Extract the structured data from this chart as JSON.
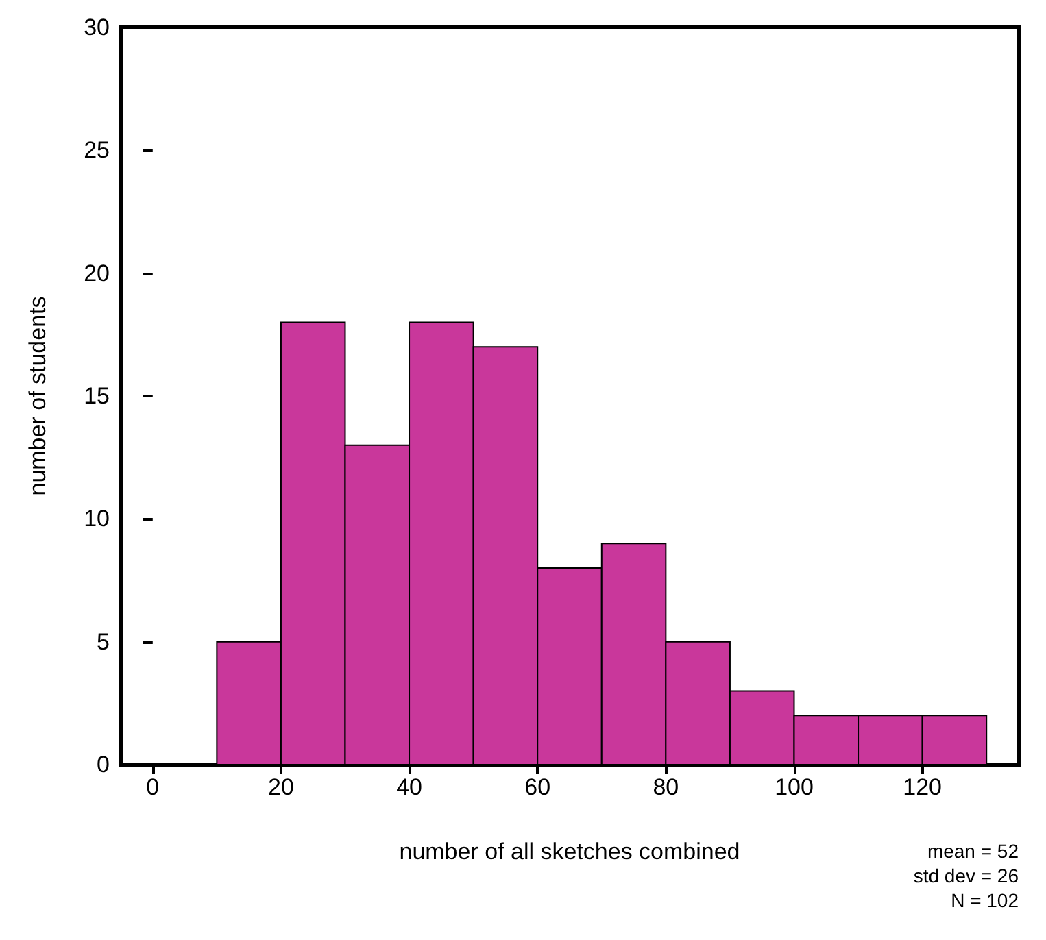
{
  "chart_data": {
    "type": "histogram",
    "xlabel": "number of all sketches combined",
    "ylabel": "number of students",
    "bins": [
      10,
      20,
      30,
      40,
      50,
      60,
      70,
      80,
      90,
      100,
      110,
      120,
      130
    ],
    "values": [
      5,
      18,
      13,
      18,
      17,
      8,
      9,
      5,
      3,
      2,
      2,
      2
    ],
    "color": "#c9379b",
    "xlim": [
      -5,
      135
    ],
    "xticks": [
      0,
      20,
      40,
      60,
      80,
      100,
      120
    ],
    "ylim": [
      0,
      30
    ],
    "yticks": [
      0,
      5,
      10,
      15,
      20,
      25,
      30
    ],
    "grid": false,
    "annotations": [
      "mean = 52",
      "std dev = 26",
      "N = 102"
    ]
  }
}
